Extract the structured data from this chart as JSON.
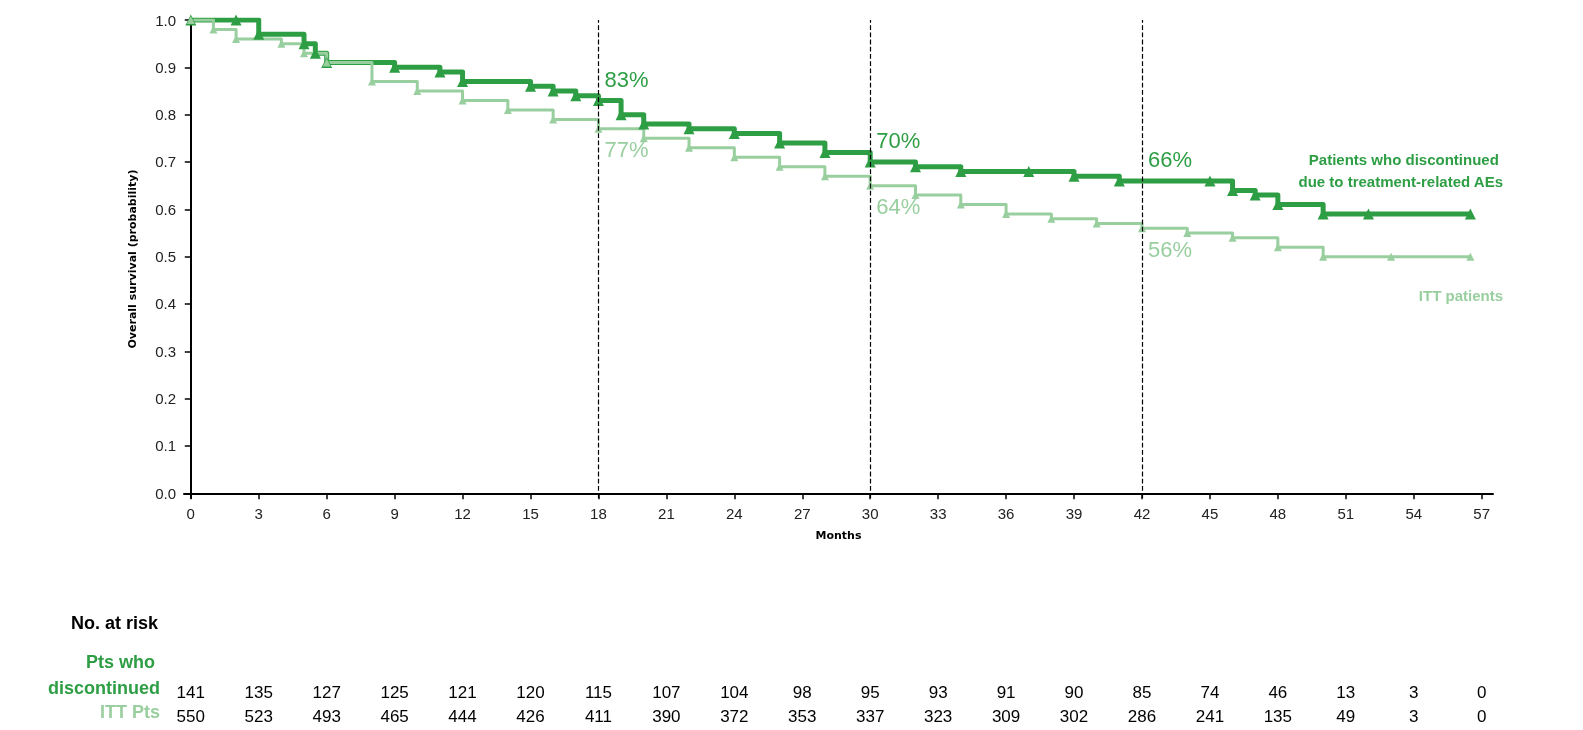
{
  "chart_data": {
    "type": "step",
    "xlabel": "Months",
    "ylabel": "Overall survival (probability)",
    "xlim": [
      -0.3,
      57.5
    ],
    "xticks": [
      0,
      3,
      6,
      9,
      12,
      15,
      18,
      21,
      24,
      27,
      30,
      33,
      36,
      39,
      42,
      45,
      48,
      51,
      54,
      57
    ],
    "ylim": [
      -0.01,
      1.0
    ],
    "yticks": [
      {
        "value": 0,
        "label": "0.0"
      },
      {
        "value": 0.1,
        "label": "0.1"
      },
      {
        "value": 0.2,
        "label": "0.2"
      },
      {
        "value": 0.3,
        "label": "0.3"
      },
      {
        "value": 0.4,
        "label": "0.4"
      },
      {
        "value": 0.5,
        "label": "0.5"
      },
      {
        "value": 0.6,
        "label": "0.6"
      },
      {
        "value": 0.7,
        "label": "0.7"
      },
      {
        "value": 0.8,
        "label": "0.8"
      },
      {
        "value": 0.9,
        "label": "0.9"
      },
      {
        "value": 1,
        "label": "1.0"
      }
    ],
    "grid": false,
    "legend": false,
    "marker": "triangle",
    "line_style": "solid",
    "series": [
      {
        "name": "Patients who discontinued due to treatment-related AEs",
        "color": "#2e9e44",
        "x": [
          0,
          2,
          3,
          5,
          5.5,
          6,
          9,
          11,
          12,
          15,
          16,
          17,
          18,
          19,
          20,
          22,
          24,
          26,
          28,
          30,
          32,
          34,
          37,
          39,
          41,
          45,
          46,
          47,
          48,
          50,
          52,
          56.5
        ],
        "values": [
          1.0,
          1.0,
          0.97,
          0.95,
          0.93,
          0.91,
          0.9,
          0.89,
          0.87,
          0.86,
          0.85,
          0.84,
          0.83,
          0.8,
          0.78,
          0.77,
          0.76,
          0.74,
          0.72,
          0.7,
          0.69,
          0.68,
          0.68,
          0.67,
          0.66,
          0.66,
          0.64,
          0.63,
          0.61,
          0.59,
          0.59,
          0.59
        ]
      },
      {
        "name": "ITT patients",
        "color": "#99cf9f",
        "x": [
          0,
          1,
          2,
          4,
          5,
          6,
          8,
          10,
          12,
          14,
          16,
          18,
          20,
          22,
          24,
          26,
          28,
          30,
          32,
          34,
          36,
          38,
          40,
          42,
          44,
          46,
          48,
          50,
          53,
          56.5
        ],
        "values": [
          1.0,
          0.98,
          0.96,
          0.95,
          0.93,
          0.91,
          0.87,
          0.85,
          0.83,
          0.81,
          0.79,
          0.77,
          0.75,
          0.73,
          0.71,
          0.69,
          0.67,
          0.65,
          0.63,
          0.61,
          0.59,
          0.58,
          0.57,
          0.56,
          0.55,
          0.54,
          0.52,
          0.5,
          0.5,
          0.5
        ]
      }
    ],
    "ref_lines": [
      {
        "axis": "x",
        "value": 18,
        "line_style": "dashed",
        "color": "#000000"
      },
      {
        "axis": "x",
        "value": 30,
        "line_style": "dashed",
        "color": "#000000"
      },
      {
        "axis": "x",
        "value": 42,
        "line_style": "dashed",
        "color": "#000000"
      }
    ],
    "annotations": [
      {
        "text": "83%",
        "x": 18,
        "y": 0.83
      },
      {
        "text": "77%",
        "x": 18,
        "y": 0.77
      },
      {
        "text": "70%",
        "x": 30,
        "y": 0.7
      },
      {
        "text": "64%",
        "x": 30,
        "y": 0.65
      },
      {
        "text": "66%",
        "x": 42,
        "y": 0.66
      },
      {
        "text": "56%",
        "x": 42,
        "y": 0.56
      },
      "No. at risk",
      "Pts who discontinued",
      "141",
      "135",
      "127",
      "125",
      "121",
      "120",
      "115",
      "107",
      "104",
      "98",
      "95",
      "93",
      "91",
      "90",
      "85",
      "74",
      "46",
      "13",
      "3",
      "0",
      "ITT Pts",
      "550",
      "523",
      "493",
      "465",
      "444",
      "426",
      "411",
      "390",
      "372",
      "353",
      "337",
      "323",
      "309",
      "302",
      "286",
      "241",
      "135",
      "49",
      "3",
      "0"
    ]
  }
}
